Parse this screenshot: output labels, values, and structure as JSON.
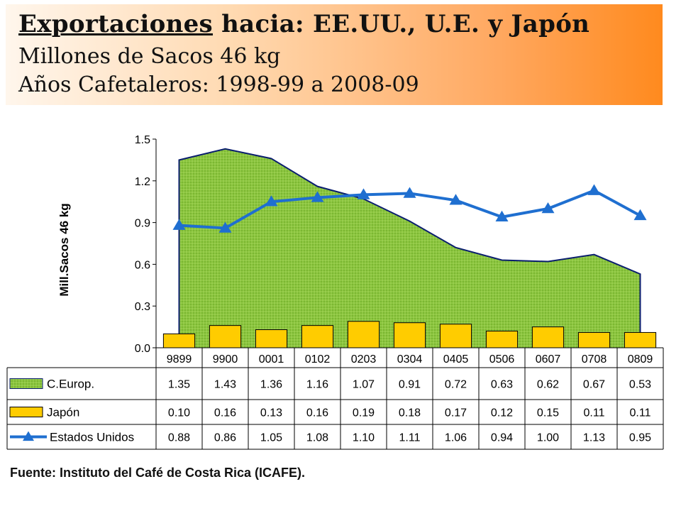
{
  "title": {
    "underlined": "Exportaciones",
    "rest": " hacia: EE.UU., U.E. y Japón",
    "line2": "Millones de Sacos 46 kg",
    "line3": "Años Cafetaleros: 1998-99 a 2008-09"
  },
  "source": "Fuente: Instituto del Café de Costa Rica (ICAFE).",
  "chart_data": {
    "type": "area",
    "ylabel": "Mill.Sacos 46 kg",
    "ylim": [
      0,
      1.5
    ],
    "yticks": [
      "0.0",
      "0.3",
      "0.6",
      "0.9",
      "1.2",
      "1.5"
    ],
    "categories": [
      "9899",
      "9900",
      "0001",
      "0102",
      "0203",
      "0304",
      "0405",
      "0506",
      "0607",
      "0708",
      "0809"
    ],
    "grid": false,
    "legend": "data-table",
    "series": [
      {
        "name": "C.Europ.",
        "kind": "area",
        "color": "#8dc63f",
        "values": [
          1.35,
          1.43,
          1.36,
          1.16,
          1.07,
          0.91,
          0.72,
          0.63,
          0.62,
          0.67,
          0.53
        ],
        "labels": [
          "1.35",
          "1.43",
          "1.36",
          "1.16",
          "1.07",
          "0.91",
          "0.72",
          "0.63",
          "0.62",
          "0.67",
          "0.53"
        ]
      },
      {
        "name": "Japón",
        "kind": "bar",
        "color": "#ffcc00",
        "values": [
          0.1,
          0.16,
          0.13,
          0.16,
          0.19,
          0.18,
          0.17,
          0.12,
          0.15,
          0.11,
          0.11
        ],
        "labels": [
          "0.10",
          "0.16",
          "0.13",
          "0.16",
          "0.19",
          "0.18",
          "0.17",
          "0.12",
          "0.15",
          "0.11",
          "0.11"
        ]
      },
      {
        "name": "Estados Unidos",
        "kind": "line",
        "color": "#1f6fd0",
        "marker": "triangle",
        "values": [
          0.88,
          0.86,
          1.05,
          1.08,
          1.1,
          1.11,
          1.06,
          0.94,
          1.0,
          1.13,
          0.95
        ],
        "labels": [
          "0.88",
          "0.86",
          "1.05",
          "1.08",
          "1.10",
          "1.11",
          "1.06",
          "0.94",
          "1.00",
          "1.13",
          "0.95"
        ]
      }
    ]
  }
}
